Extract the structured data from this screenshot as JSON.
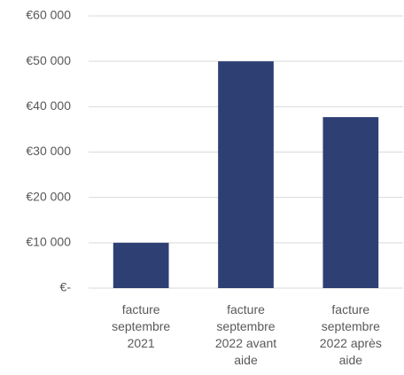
{
  "chart_data": {
    "type": "bar",
    "categories": [
      "facture septembre 2021",
      "facture septembre 2022 avant aide",
      "facture septembre 2022 après aide"
    ],
    "values": [
      10000,
      50000,
      37700
    ],
    "color": "#2e3f74",
    "ylim": [
      0,
      60000
    ],
    "yticks": [
      {
        "value": 0,
        "label": "€-"
      },
      {
        "value": 10000,
        "label": "€10 000"
      },
      {
        "value": 20000,
        "label": "€20 000"
      },
      {
        "value": 30000,
        "label": "€30 000"
      },
      {
        "value": 40000,
        "label": "€40 000"
      },
      {
        "value": 50000,
        "label": "€50 000"
      },
      {
        "value": 60000,
        "label": "€60 000"
      }
    ],
    "grid": true
  }
}
